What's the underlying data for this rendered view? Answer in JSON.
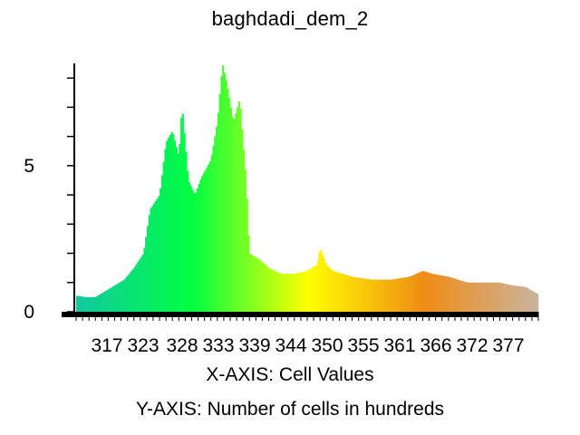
{
  "chart_data": {
    "type": "bar",
    "title": "baghdadi_dem_2",
    "xlabel": "X-AXIS: Cell Values",
    "ylabel": "Y-AXIS: Number of cells in hundreds",
    "x_range": [
      312,
      384
    ],
    "ylim": [
      0,
      8.5
    ],
    "grid": false,
    "legend": "none",
    "x_ticks": [
      "317",
      "323",
      "328",
      "333",
      "339",
      "344",
      "350",
      "355",
      "361",
      "366",
      "372",
      "377"
    ],
    "y_ticks": [
      "0",
      "5"
    ],
    "color_stops": [
      "#10c8a0",
      "#00ff40",
      "#ffff00",
      "#f08c14",
      "#c8b4a0"
    ],
    "profile": [
      [
        312.0,
        0.55
      ],
      [
        313.5,
        0.5
      ],
      [
        315.0,
        0.5
      ],
      [
        316.5,
        0.7
      ],
      [
        318.0,
        0.9
      ],
      [
        319.5,
        1.1
      ],
      [
        321.0,
        1.5
      ],
      [
        322.5,
        2.0
      ],
      [
        323.5,
        3.5
      ],
      [
        325.0,
        4.0
      ],
      [
        326.0,
        5.8
      ],
      [
        327.0,
        6.2
      ],
      [
        328.0,
        5.3
      ],
      [
        328.5,
        7.1
      ],
      [
        329.5,
        4.5
      ],
      [
        330.5,
        4.0
      ],
      [
        331.5,
        4.6
      ],
      [
        333.0,
        5.2
      ],
      [
        334.0,
        6.5
      ],
      [
        334.8,
        8.5
      ],
      [
        335.5,
        7.8
      ],
      [
        336.5,
        6.5
      ],
      [
        337.5,
        7.3
      ],
      [
        338.5,
        4.5
      ],
      [
        339.0,
        2.0
      ],
      [
        340.5,
        1.8
      ],
      [
        342.0,
        1.5
      ],
      [
        344.0,
        1.3
      ],
      [
        346.0,
        1.3
      ],
      [
        348.0,
        1.4
      ],
      [
        349.5,
        1.6
      ],
      [
        350.0,
        2.2
      ],
      [
        351.0,
        1.6
      ],
      [
        352.0,
        1.4
      ],
      [
        355.0,
        1.2
      ],
      [
        358.0,
        1.1
      ],
      [
        361.0,
        1.1
      ],
      [
        364.0,
        1.2
      ],
      [
        366.0,
        1.4
      ],
      [
        367.5,
        1.3
      ],
      [
        370.0,
        1.2
      ],
      [
        373.0,
        1.0
      ],
      [
        376.0,
        1.0
      ],
      [
        378.0,
        1.0
      ],
      [
        380.0,
        0.9
      ],
      [
        382.0,
        0.85
      ],
      [
        384.0,
        0.6
      ]
    ]
  }
}
